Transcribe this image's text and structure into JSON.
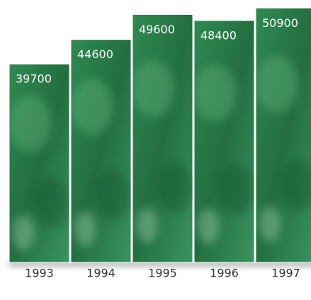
{
  "chart_data": {
    "type": "bar",
    "categories": [
      "1993",
      "1994",
      "1995",
      "1996",
      "1997"
    ],
    "values": [
      39700,
      44600,
      49600,
      48400,
      50900
    ],
    "color": "#2a7d4a",
    "ylim": [
      0,
      52500
    ]
  }
}
